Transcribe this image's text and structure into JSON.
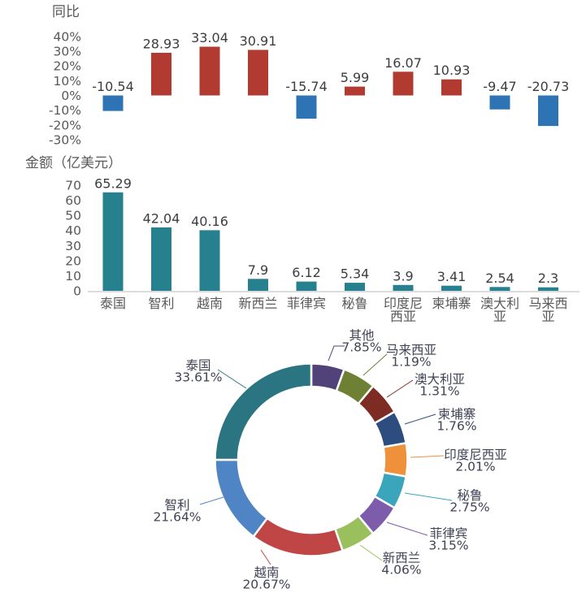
{
  "page": {
    "background": "#ffffff"
  },
  "chart_data": [
    {
      "type": "bar",
      "title": "同比",
      "categories": [
        "泰国",
        "智利",
        "越南",
        "新西兰",
        "菲律宾",
        "秘鲁",
        "印度尼西亚",
        "柬埔寨",
        "澳大利亚",
        "马来西亚"
      ],
      "values": [
        -10.54,
        28.93,
        33.04,
        30.91,
        -15.74,
        5.99,
        16.07,
        10.93,
        -9.47,
        -20.73
      ],
      "yticks": [
        "40%",
        "30%",
        "20%",
        "10%",
        "0%",
        "-10%",
        "-20%",
        "-30%"
      ],
      "ylim": [
        -30,
        40
      ],
      "grid": false,
      "x_axis_labels_shown": false,
      "data_labels": true,
      "colors": {
        "positive": "#b13b31",
        "negative": "#2e74b5"
      }
    },
    {
      "type": "bar",
      "title": "金额（亿美元）",
      "categories": [
        "泰国",
        "智利",
        "越南",
        "新西兰",
        "菲律宾",
        "秘鲁",
        "印度尼西亚",
        "柬埔寨",
        "澳大利亚",
        "马来西亚"
      ],
      "values": [
        65.29,
        42.04,
        40.16,
        7.9,
        6.12,
        5.34,
        3.9,
        3.41,
        2.54,
        2.3
      ],
      "yticks": [
        0,
        10,
        20,
        30,
        40,
        50,
        60,
        70
      ],
      "ylim": [
        0,
        70
      ],
      "grid": false,
      "data_labels": true,
      "bar_color": "#27808d",
      "axis_line_color": "#c8c8c8"
    },
    {
      "type": "donut",
      "start": "top",
      "direction": "clockwise",
      "labels": [
        "其他",
        "马来西亚",
        "澳大利亚",
        "柬埔寨",
        "印度尼西亚",
        "秘鲁",
        "菲律宾",
        "新西兰",
        "越南",
        "智利",
        "泰国"
      ],
      "values_pct": [
        7.85,
        1.19,
        1.31,
        1.76,
        2.01,
        2.75,
        3.15,
        4.06,
        20.67,
        21.64,
        33.61
      ],
      "colors": [
        "#514379",
        "#6d8033",
        "#7e2b24",
        "#2c4d7e",
        "#ef913a",
        "#3aa5bb",
        "#7c5cab",
        "#99c05c",
        "#c04646",
        "#5085c5",
        "#2b7582"
      ],
      "display_angles_deg": [
        20,
        20,
        20,
        20,
        20,
        20,
        20,
        21,
        56,
        53,
        90
      ],
      "label_format": "{name}\n{pct}%"
    }
  ]
}
